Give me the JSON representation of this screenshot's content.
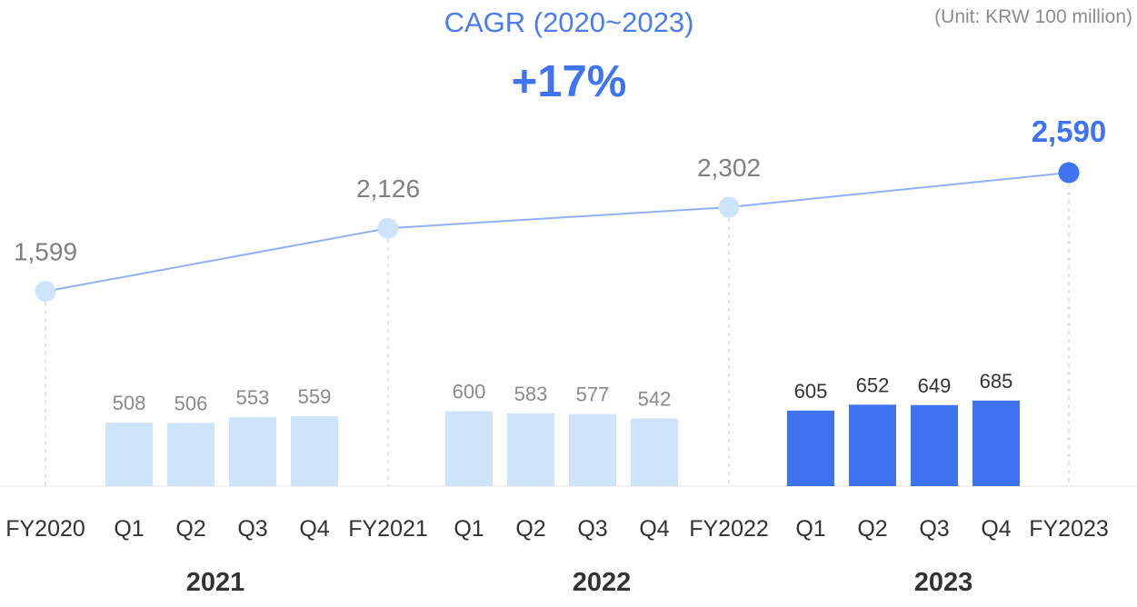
{
  "chart_data": {
    "type": "bar",
    "unit": "(Unit: KRW 100 million)",
    "cagr": {
      "label": "CAGR (2020~2023)",
      "value": "+17%"
    },
    "x_ticks": [
      "FY2020",
      "Q1",
      "Q2",
      "Q3",
      "Q4",
      "FY2021",
      "Q1",
      "Q2",
      "Q3",
      "Q4",
      "FY2022",
      "Q1",
      "Q2",
      "Q3",
      "Q4",
      "FY2023"
    ],
    "year_groups": [
      "2021",
      "2022",
      "2023"
    ],
    "quarterly_series": [
      {
        "year": "2021",
        "categories": [
          "Q1",
          "Q2",
          "Q3",
          "Q4"
        ],
        "values": [
          508,
          506,
          553,
          559
        ],
        "labels": [
          "508",
          "506",
          "553",
          "559"
        ],
        "color": "#cde4fb"
      },
      {
        "year": "2022",
        "categories": [
          "Q1",
          "Q2",
          "Q3",
          "Q4"
        ],
        "values": [
          600,
          583,
          577,
          542
        ],
        "labels": [
          "600",
          "583",
          "577",
          "542"
        ],
        "color": "#cde4fb"
      },
      {
        "year": "2023",
        "categories": [
          "Q1",
          "Q2",
          "Q3",
          "Q4"
        ],
        "values": [
          605,
          652,
          649,
          685
        ],
        "labels": [
          "605",
          "652",
          "649",
          "685"
        ],
        "color": "#3f73ef"
      }
    ],
    "annual_series": {
      "categories": [
        "FY2020",
        "FY2021",
        "FY2022",
        "FY2023"
      ],
      "values": [
        1599,
        2126,
        2302,
        2590
      ],
      "labels": [
        "1,599",
        "2,126",
        "2,302",
        "2,590"
      ],
      "point_color": "#cde4fb",
      "highlight_color": "#3f73ef",
      "line_color": "#8fb0f5"
    },
    "grid": false,
    "legend": "none"
  }
}
